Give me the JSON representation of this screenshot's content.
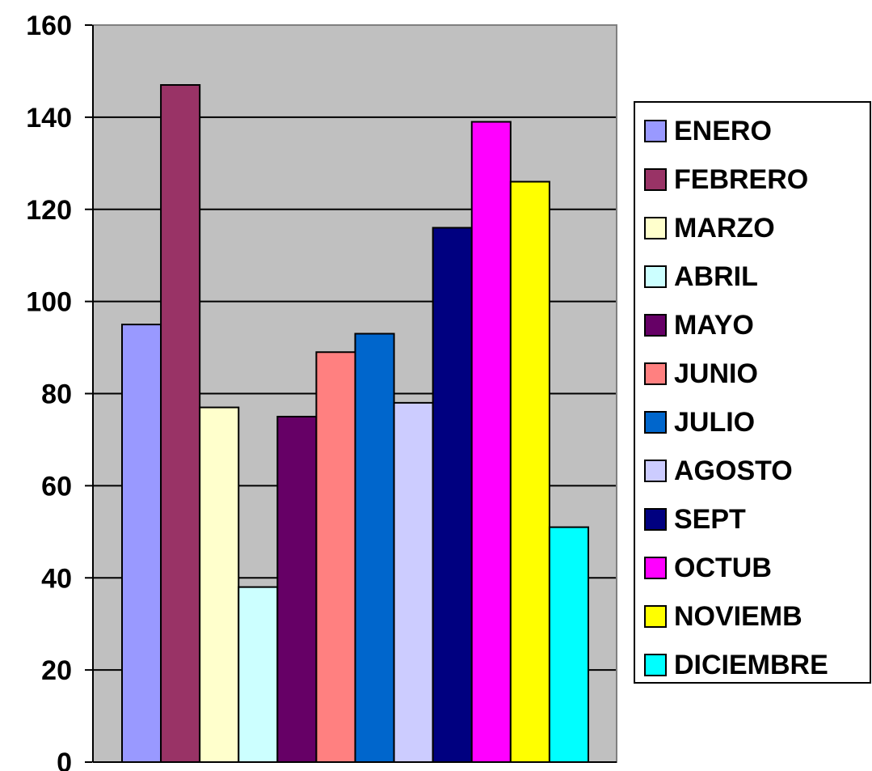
{
  "chart_data": {
    "type": "bar",
    "title": "",
    "xlabel": "",
    "ylabel": "",
    "ylim": [
      0,
      160
    ],
    "y_ticks": [
      "0",
      "20",
      "40",
      "60",
      "80",
      "100",
      "120",
      "140",
      "160"
    ],
    "grid": true,
    "legend_position": "right",
    "plot_background": "#c0c0c0",
    "series": [
      {
        "name": "ENERO",
        "value": 95,
        "color": "#9999ff"
      },
      {
        "name": "FEBRERO",
        "value": 147,
        "color": "#993366"
      },
      {
        "name": "MARZO",
        "value": 77,
        "color": "#ffffcc"
      },
      {
        "name": "ABRIL",
        "value": 38,
        "color": "#ccffff"
      },
      {
        "name": "MAYO",
        "value": 75,
        "color": "#660066"
      },
      {
        "name": "JUNIO",
        "value": 89,
        "color": "#ff8080"
      },
      {
        "name": "JULIO",
        "value": 93,
        "color": "#0066cc"
      },
      {
        "name": "AGOSTO",
        "value": 78,
        "color": "#ccccff"
      },
      {
        "name": "SEPT",
        "value": 116,
        "color": "#000080"
      },
      {
        "name": "OCTUB",
        "value": 139,
        "color": "#ff00ff"
      },
      {
        "name": "NOVIEMB",
        "value": 126,
        "color": "#ffff00"
      },
      {
        "name": "DICIEMBRE",
        "value": 51,
        "color": "#00ffff"
      }
    ]
  }
}
